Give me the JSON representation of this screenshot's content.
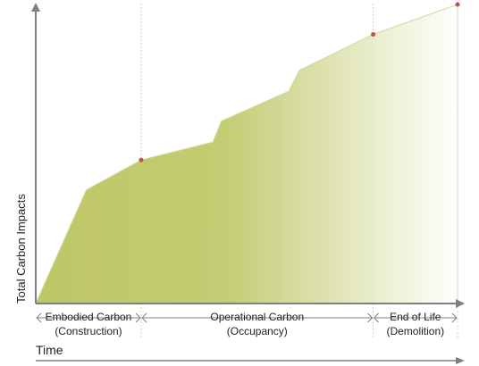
{
  "chart_data": {
    "type": "area",
    "title": "",
    "xlabel": "Time",
    "ylabel": "Total Carbon Impacts",
    "xlim": [
      0,
      100
    ],
    "ylim": [
      0,
      100
    ],
    "grid": false,
    "legend": "none",
    "x": [
      0,
      12,
      25,
      42,
      44,
      60,
      62.5,
      80,
      100
    ],
    "y": [
      0,
      38,
      48,
      54,
      61,
      71,
      78,
      90,
      100
    ],
    "markers": [
      {
        "x": 25,
        "y": 48
      },
      {
        "x": 80,
        "y": 90
      },
      {
        "x": 100,
        "y": 100
      }
    ],
    "phase_boundaries": [
      25,
      80,
      100
    ],
    "phases": [
      {
        "line1": "Embodied Carbon",
        "line2": "(Construction)",
        "from": 0,
        "to": 25
      },
      {
        "line1": "Operational Carbon",
        "line2": "(Occupancy)",
        "from": 25,
        "to": 80
      },
      {
        "line1": "End of Life",
        "line2": "(Demolition)",
        "from": 80,
        "to": 100
      }
    ],
    "colors": {
      "fill": "#bec766",
      "fill_edge": "#ffffff",
      "outline": "#d3d9a0",
      "marker": "#c0504d",
      "axis": "#808080",
      "guide": "#f2b8a4"
    }
  }
}
